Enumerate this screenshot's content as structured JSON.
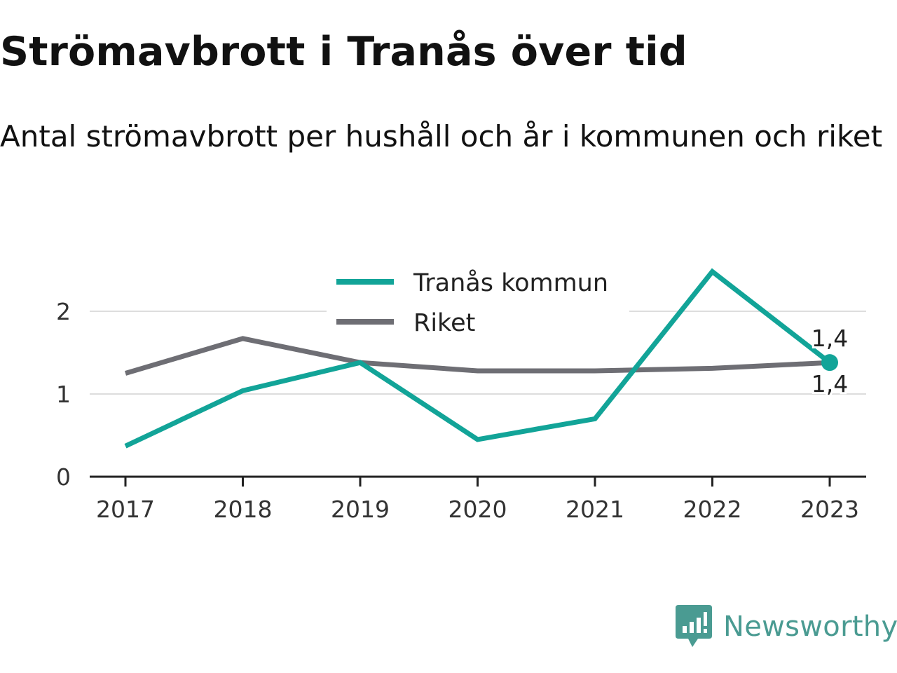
{
  "header": {
    "title": "Strömavbrott i Tranås över tid",
    "subtitle": "Antal strömavbrott per hushåll och år i kommunen och riket"
  },
  "brand": {
    "name": "Newsworthy",
    "icon": "newsworthy-logo-icon"
  },
  "colors": {
    "tranas": "#12a498",
    "riket": "#6e6e74",
    "grid": "#dddddd",
    "axis": "#222222",
    "brand": "#4a9b92"
  },
  "chart_data": {
    "type": "line",
    "categories": [
      "2017",
      "2018",
      "2019",
      "2020",
      "2021",
      "2022",
      "2023"
    ],
    "series": [
      {
        "name": "Tranås kommun",
        "color": "#12a498",
        "values": [
          0.37,
          1.04,
          1.38,
          0.45,
          0.7,
          2.48,
          1.38
        ]
      },
      {
        "name": "Riket",
        "color": "#6e6e74",
        "values": [
          1.25,
          1.67,
          1.38,
          1.28,
          1.28,
          1.31,
          1.38
        ]
      }
    ],
    "yticks": [
      "0",
      "1",
      "2"
    ],
    "ylim": [
      0,
      2.5
    ],
    "grid": true,
    "legend_position": "top-center",
    "end_labels": [
      {
        "series": "Riket",
        "text": "1,4",
        "position": "above"
      },
      {
        "series": "Tranås kommun",
        "text": "1,4",
        "position": "below"
      }
    ]
  }
}
